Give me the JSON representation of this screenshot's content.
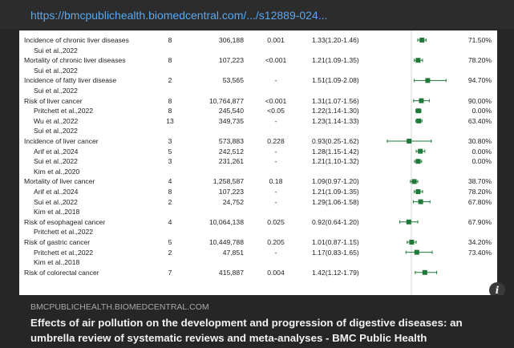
{
  "url": "https://bmcpublichealth.biomedcentral.com/.../s12889-024...",
  "table": {
    "groups": [
      {
        "outcome": "Incidence of chronic liver diseases",
        "stats": [
          "8",
          "306,188",
          "0.001",
          "1.33(1.20-1.46)",
          "71.50%"
        ],
        "sources": [
          {
            "author": "Sui et al.,2022"
          }
        ]
      },
      {
        "outcome": "Mortality of chronic liver diseases",
        "stats": [
          "8",
          "107,223",
          "<0.001",
          "1.21(1.09-1.35)",
          "78.20%"
        ],
        "sources": [
          {
            "author": "Sui et al.,2022"
          }
        ]
      },
      {
        "outcome": "Incidence of fatty liver disease",
        "stats": [
          "2",
          "53,565",
          "-",
          "1.51(1.09-2.08)",
          "94.70%"
        ],
        "sources": [
          {
            "author": "Sui et al.,2022"
          }
        ]
      },
      {
        "outcome": "Risk of liver cancer",
        "stats": [
          "8",
          "10,764,877",
          "<0.001",
          "1.31(1.07-1.56)",
          "90.00%"
        ],
        "sources": [
          {
            "author": "Pritchett et al.,2022",
            "stats": [
              "8",
              "245,540",
              "<0.05",
              "1.22(1.14-1.30)",
              "0.00%"
            ]
          },
          {
            "author": "Wu et al.,2022",
            "stats": [
              "13",
              "349,735",
              "-",
              "1.23(1.14-1.33)",
              "63.40%"
            ]
          },
          {
            "author": "Sui et al.,2022"
          }
        ]
      },
      {
        "outcome": "Incidence of liver cancer",
        "stats": [
          "3",
          "573,883",
          "0.228",
          "0.93(0.25-1.62)",
          "30.80%"
        ],
        "sources": [
          {
            "author": "Arif et al.,2024",
            "stats": [
              "5",
              "242,512",
              "-",
              "1.28(1.15-1.42)",
              "0.00%"
            ]
          },
          {
            "author": "Sui et al.,2022",
            "stats": [
              "3",
              "231,261",
              "-",
              "1.21(1.10-1.32)",
              "0.00%"
            ]
          },
          {
            "author": "Kim et al.,2020"
          }
        ]
      },
      {
        "outcome": "Mortality of liver cancer",
        "stats": [
          "4",
          "1,258,587",
          "0.18",
          "1.09(0.97-1.20)",
          "38.70%"
        ],
        "sources": [
          {
            "author": "Arif et al.,2024",
            "stats": [
              "8",
              "107,223",
              "-",
              "1.21(1.09-1.35)",
              "78.20%"
            ]
          },
          {
            "author": "Sui et al.,2022",
            "stats": [
              "2",
              "24,752",
              "-",
              "1.29(1.06-1.58)",
              "67.80%"
            ]
          },
          {
            "author": "Kim et al.,2018"
          }
        ]
      },
      {
        "outcome": "Risk of esophageal cancer",
        "stats": [
          "4",
          "10,064,138",
          "0.025",
          "0.92(0.64-1.20)",
          "67.90%"
        ],
        "sources": [
          {
            "author": "Pritchett et al.,2022"
          }
        ]
      },
      {
        "outcome": "Risk of gastric cancer",
        "stats": [
          "5",
          "10,449,788",
          "0.205",
          "1.01(0.87-1.15)",
          "34.20%"
        ],
        "sources": [
          {
            "author": "Pritchett et al.,2022",
            "stats": [
              "2",
              "47,851",
              "-",
              "1.17(0.83-1.65)",
              "73.40%"
            ]
          },
          {
            "author": "Kim et al.,2018"
          }
        ]
      },
      {
        "outcome": "Risk of colorectal cancer",
        "stats": [
          "7",
          "415,887",
          "0.004",
          "1.42(1.12-1.79)"
        ],
        "sources": []
      }
    ]
  },
  "footer": {
    "domain": "BMCPUBLICHEALTH.BIOMEDCENTRAL.COM",
    "title": "Effects of air pollution on the development and progression of digestive diseases: an umbrella review of systematic reviews and meta-analyses - BMC Public Health"
  }
}
